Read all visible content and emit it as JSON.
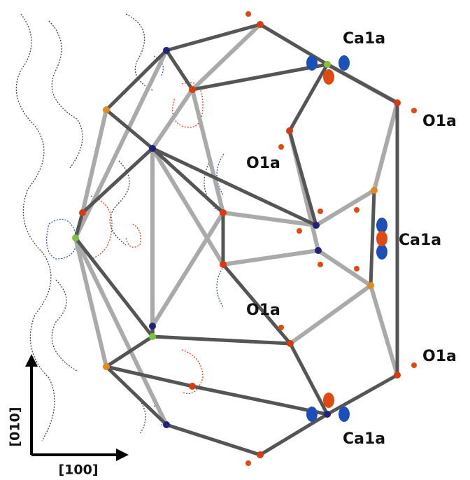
{
  "labels": {
    "ca_top": "Ca1a",
    "ca_right": "Ca1a",
    "ca_bottom": "Ca1a",
    "o_top_right": "O1a",
    "o_upper_mid": "O1a",
    "o_lower_mid": "O1a",
    "o_bottom_right": "O1a"
  },
  "axes": {
    "vertical": "[010]",
    "horizontal": "[100]"
  }
}
